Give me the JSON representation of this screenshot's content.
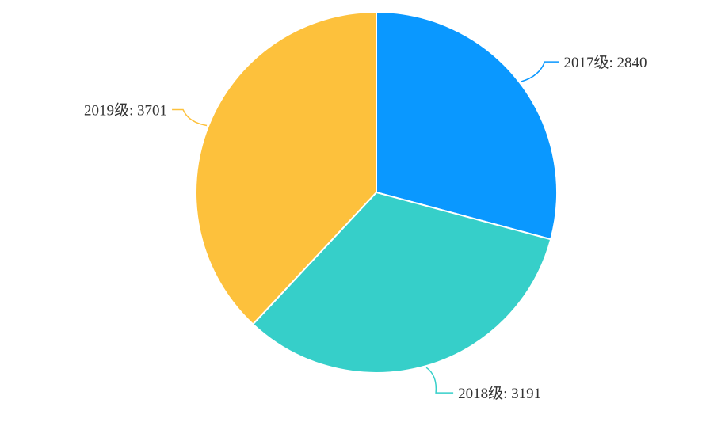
{
  "chart_data": {
    "type": "pie",
    "title": "",
    "categories": [
      "2017级",
      "2018级",
      "2019级"
    ],
    "values": [
      2840,
      3191,
      3701
    ],
    "label_texts": [
      "2017级: 2840",
      "2018级: 3191",
      "2019级: 3701"
    ],
    "colors": [
      "#0a98ff",
      "#36cfc9",
      "#fdc13c"
    ],
    "start_angle_deg": 0,
    "direction": "clockwise",
    "legend": "none"
  }
}
